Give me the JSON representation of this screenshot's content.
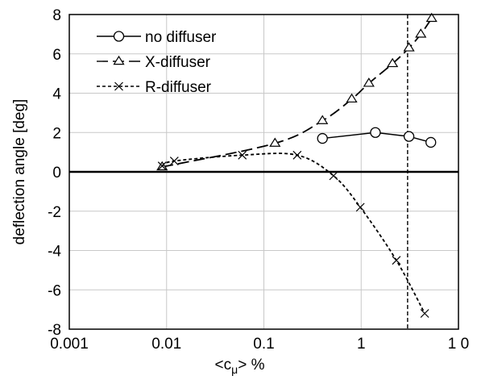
{
  "chart_data": {
    "type": "line",
    "xscale": "log",
    "xlim": [
      0.001,
      10
    ],
    "ylim": [
      -8,
      8
    ],
    "grid": true,
    "legend_position": "top-left",
    "xlabel_parts": {
      "pre": "<c",
      "sub": "μ",
      "post": "> %"
    },
    "ylabel": "deflection angle [deg]",
    "x_ticks": [
      {
        "value": 0.001,
        "label": "0.001"
      },
      {
        "value": 0.01,
        "label": "0.01"
      },
      {
        "value": 0.1,
        "label": "0.1"
      },
      {
        "value": 1,
        "label": "1"
      },
      {
        "value": 10,
        "label": "1 0"
      }
    ],
    "y_ticks": [
      {
        "value": -8,
        "label": "-8"
      },
      {
        "value": -6,
        "label": "-6"
      },
      {
        "value": -4,
        "label": "-4"
      },
      {
        "value": -2,
        "label": "-2"
      },
      {
        "value": 0,
        "label": "0"
      },
      {
        "value": 2,
        "label": "2"
      },
      {
        "value": 4,
        "label": "4"
      },
      {
        "value": 6,
        "label": "6"
      },
      {
        "value": 8,
        "label": "8"
      }
    ],
    "reference_lines": [
      {
        "axis": "y",
        "value": 0,
        "style": "solid-thick"
      },
      {
        "axis": "x",
        "value": 3.0,
        "style": "dashed"
      }
    ],
    "series": [
      {
        "name": "no diffuser",
        "line": "solid",
        "marker": "circle",
        "x": [
          0.4,
          1.4,
          3.1,
          5.2
        ],
        "y": [
          1.7,
          2.0,
          1.8,
          1.5
        ]
      },
      {
        "name": "X-diffuser",
        "line": "long-dash",
        "marker": "triangle",
        "x": [
          0.009,
          0.13,
          0.4,
          0.8,
          1.2,
          2.1,
          3.1,
          4.1,
          5.3
        ],
        "y": [
          0.25,
          1.45,
          2.6,
          3.7,
          4.5,
          5.5,
          6.3,
          7.0,
          7.8
        ]
      },
      {
        "name": "R-diffuser",
        "line": "short-dash",
        "marker": "x",
        "x": [
          0.009,
          0.012,
          0.06,
          0.22,
          0.52,
          0.98,
          2.3,
          4.5
        ],
        "y": [
          0.3,
          0.55,
          0.85,
          0.85,
          -0.2,
          -1.8,
          -4.5,
          -7.2
        ]
      }
    ]
  }
}
